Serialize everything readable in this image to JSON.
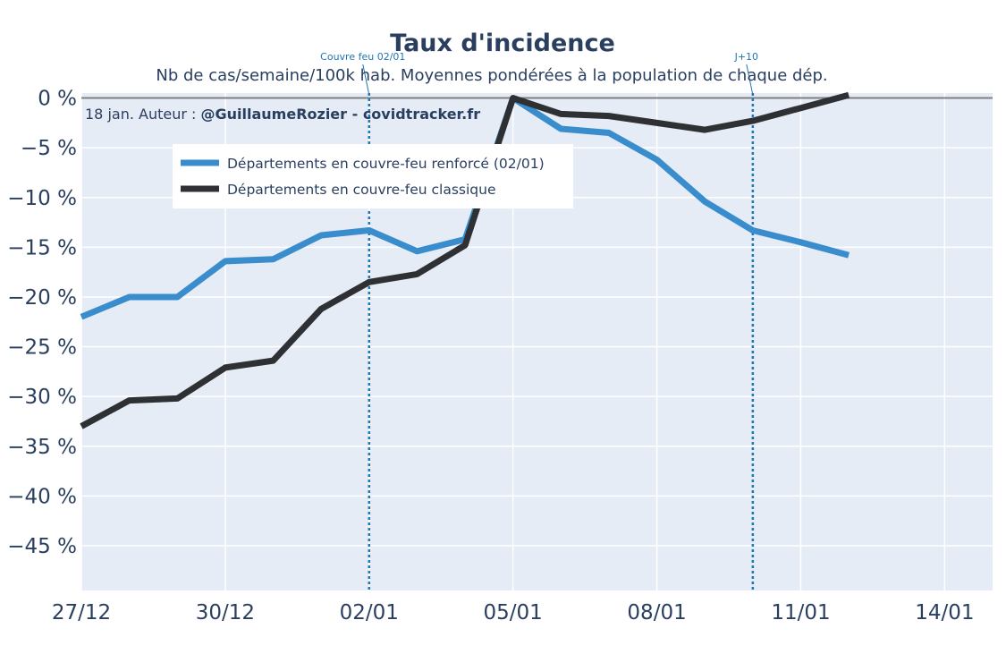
{
  "title": "Taux d'incidence",
  "subtitle": "Nb de cas/semaine/100k hab. Moyennes pondérées à la population de chaque dép.",
  "note": {
    "prefix": "18 jan. Auteur : ",
    "bold": "@GuillaumeRozier - covidtracker.fr"
  },
  "colors": {
    "plot_bg": "#e5ecf6",
    "grid": "#ffffff",
    "zero_line": "#7f7f7f",
    "annotation": "#1f77b4",
    "text": "#2a3f5f"
  },
  "chart_data": {
    "type": "line",
    "title": "Taux d'incidence",
    "subtitle": "Nb de cas/semaine/100k hab. Moyennes pondérées à la population de chaque dép.",
    "x_dates": [
      "2020-12-27",
      "2020-12-28",
      "2020-12-29",
      "2020-12-30",
      "2020-12-31",
      "2021-01-01",
      "2021-01-02",
      "2021-01-03",
      "2021-01-04",
      "2021-01-05",
      "2021-01-06",
      "2021-01-07",
      "2021-01-08",
      "2021-01-09",
      "2021-01-10",
      "2021-01-11",
      "2021-01-12"
    ],
    "x_range": [
      "2020-12-27",
      "2021-01-15"
    ],
    "x_ticks": [
      "2020-12-27",
      "2020-12-30",
      "2021-01-02",
      "2021-01-05",
      "2021-01-08",
      "2021-01-11",
      "2021-01-14"
    ],
    "x_tick_labels": [
      "27/12",
      "30/12",
      "02/01",
      "05/01",
      "08/01",
      "11/01",
      "14/01"
    ],
    "ylim": [
      -49.5,
      0.5
    ],
    "y_ticks": [
      0,
      -5,
      -10,
      -15,
      -20,
      -25,
      -30,
      -35,
      -40,
      -45
    ],
    "y_tick_labels": [
      "0 %",
      "−5 %",
      "−10 %",
      "−15 %",
      "−20 %",
      "−25 %",
      "−30 %",
      "−35 %",
      "−40 %",
      "−45 %"
    ],
    "grid": true,
    "legend_position": "top-left",
    "series": [
      {
        "name": "Départements en couvre-feu renforcé (02/01)",
        "color": "#3a8dcc",
        "values": [
          -22.0,
          -20.0,
          -20.0,
          -16.4,
          -16.2,
          -13.8,
          -13.3,
          -15.4,
          -14.2,
          0.0,
          -3.1,
          -3.5,
          -6.2,
          -10.4,
          -13.3,
          -14.5,
          -15.8
        ]
      },
      {
        "name": "Départements en couvre-feu classique",
        "color": "#2f3033",
        "values": [
          -33.0,
          -30.4,
          -30.2,
          -27.1,
          -26.4,
          -21.2,
          -18.5,
          -17.7,
          -14.8,
          0.0,
          -1.6,
          -1.8,
          -2.5,
          -3.2,
          -2.3,
          -1.0,
          0.3
        ]
      }
    ],
    "annotations": [
      {
        "date": "2021-01-02",
        "label": "Couvre feu 02/01"
      },
      {
        "date": "2021-01-10",
        "label": "J+10"
      }
    ]
  }
}
